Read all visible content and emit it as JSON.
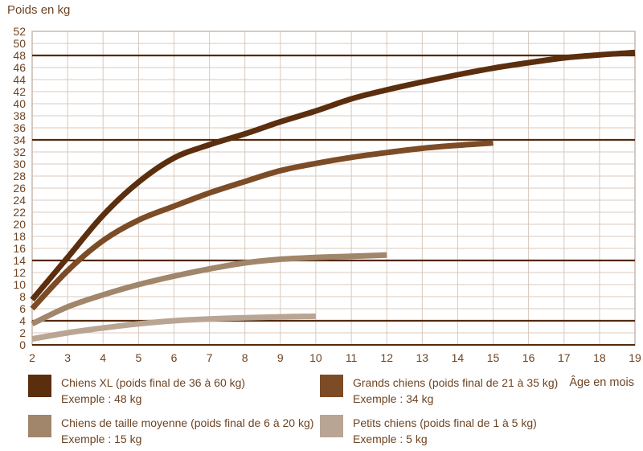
{
  "title": "Poids en kg",
  "x_axis_title": "Âge en mois",
  "colors": {
    "grid": "#d8c9bd",
    "plot_border": "#c5b4a8",
    "bottom_axis": "#54290c",
    "reference_line": "#54290c",
    "axis_text": "#6e4423",
    "background": "#ffffff"
  },
  "chart_data": {
    "type": "line",
    "title": "Poids en kg",
    "xlabel": "Âge en mois",
    "ylabel": "Poids en kg",
    "xlim": [
      2,
      19
    ],
    "ylim": [
      0,
      52
    ],
    "x_ticks": [
      2,
      3,
      4,
      5,
      6,
      7,
      8,
      9,
      10,
      11,
      12,
      13,
      14,
      15,
      16,
      17,
      18,
      19
    ],
    "y_ticks": [
      0,
      2,
      4,
      6,
      8,
      10,
      12,
      14,
      16,
      18,
      20,
      22,
      24,
      26,
      28,
      30,
      32,
      34,
      36,
      38,
      40,
      42,
      44,
      46,
      48,
      50,
      52
    ],
    "grid": true,
    "legend_position": "below",
    "reference_lines": [
      48,
      34,
      14,
      4
    ],
    "series": [
      {
        "name": "Chiens XL",
        "color": "#5b2e0e",
        "x": [
          2,
          3,
          4,
          5,
          6,
          7,
          8,
          9,
          10,
          11,
          12,
          13,
          14,
          15,
          16,
          17,
          18,
          19
        ],
        "values": [
          7.5,
          14.5,
          21.5,
          27,
          31,
          33.2,
          35,
          37,
          38.8,
          40.8,
          42.3,
          43.6,
          44.8,
          45.9,
          46.8,
          47.6,
          48.1,
          48.5
        ]
      },
      {
        "name": "Grands chiens",
        "color": "#7c4c27",
        "x": [
          2,
          3,
          4,
          5,
          6,
          7,
          8,
          9,
          10,
          11,
          12,
          13,
          14,
          15
        ],
        "values": [
          6,
          12.3,
          17.3,
          20.7,
          23,
          25.2,
          27.1,
          28.9,
          30.1,
          31.1,
          31.9,
          32.6,
          33.1,
          33.5
        ]
      },
      {
        "name": "Chiens de taille moyenne",
        "color": "#a1866b",
        "x": [
          2,
          3,
          4,
          5,
          6,
          7,
          8,
          9,
          10,
          11,
          12
        ],
        "values": [
          3.5,
          6.3,
          8.3,
          10,
          11.4,
          12.6,
          13.6,
          14.2,
          14.5,
          14.7,
          14.9
        ]
      },
      {
        "name": "Petits chiens",
        "color": "#b9a593",
        "x": [
          2,
          3,
          4,
          5,
          6,
          7,
          8,
          9,
          10
        ],
        "values": [
          1,
          2,
          2.8,
          3.5,
          4,
          4.3,
          4.5,
          4.65,
          4.75
        ]
      }
    ]
  },
  "legend": {
    "items": [
      {
        "label": "Chiens XL (poids final de 36 à 60 kg)",
        "example": "Exemple : 48 kg",
        "color": "#5b2e0e"
      },
      {
        "label": "Grands chiens (poids final de 21 à 35 kg)",
        "example": "Exemple : 34 kg",
        "color": "#7c4c27"
      },
      {
        "label": "Chiens de taille moyenne (poids final de 6 à 20 kg)",
        "example": "Exemple : 15 kg",
        "color": "#a1866b"
      },
      {
        "label": "Petits chiens (poids final de 1 à 5 kg)",
        "example": "Exemple : 5 kg",
        "color": "#b9a593"
      }
    ]
  }
}
